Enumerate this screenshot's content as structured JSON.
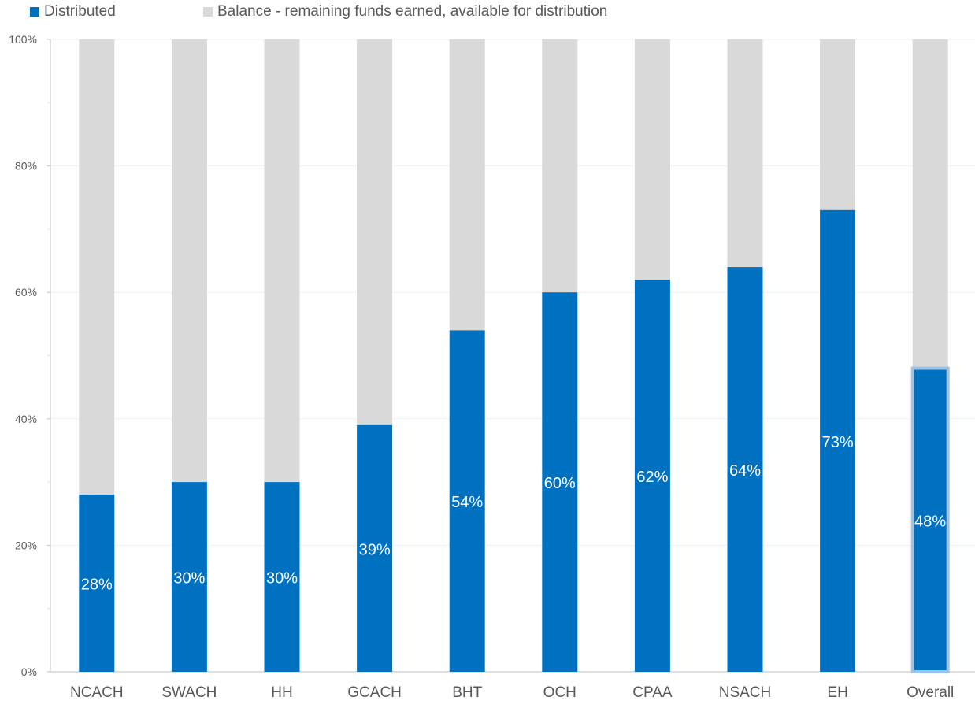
{
  "chart_data": {
    "type": "bar",
    "stacked": true,
    "percent_stacked": true,
    "categories": [
      "NCACH",
      "SWACH",
      "HH",
      "GCACH",
      "BHT",
      "OCH",
      "CPAA",
      "NSACH",
      "EH",
      "Overall"
    ],
    "series": [
      {
        "name": "Distributed",
        "color": "#0070C0",
        "values": [
          28,
          30,
          30,
          39,
          54,
          60,
          62,
          64,
          73,
          48
        ],
        "data_labels": [
          "28%",
          "30%",
          "30%",
          "39%",
          "54%",
          "60%",
          "62%",
          "64%",
          "73%",
          "48%"
        ]
      },
      {
        "name": "Balance - remaining funds earned, available for distribution",
        "color": "#D9D9D9",
        "values": [
          72,
          70,
          70,
          61,
          46,
          40,
          38,
          36,
          27,
          52
        ]
      }
    ],
    "highlighted_category": "Overall",
    "highlight_color": "#9DC3E6",
    "ylim": [
      0,
      100
    ],
    "yticks": [
      0,
      20,
      40,
      60,
      80,
      100
    ],
    "ytick_labels": [
      "0%",
      "20%",
      "40%",
      "60%",
      "80%",
      "100%"
    ],
    "grid": true,
    "legend_position": "top-left",
    "title": "",
    "xlabel": "",
    "ylabel": ""
  }
}
